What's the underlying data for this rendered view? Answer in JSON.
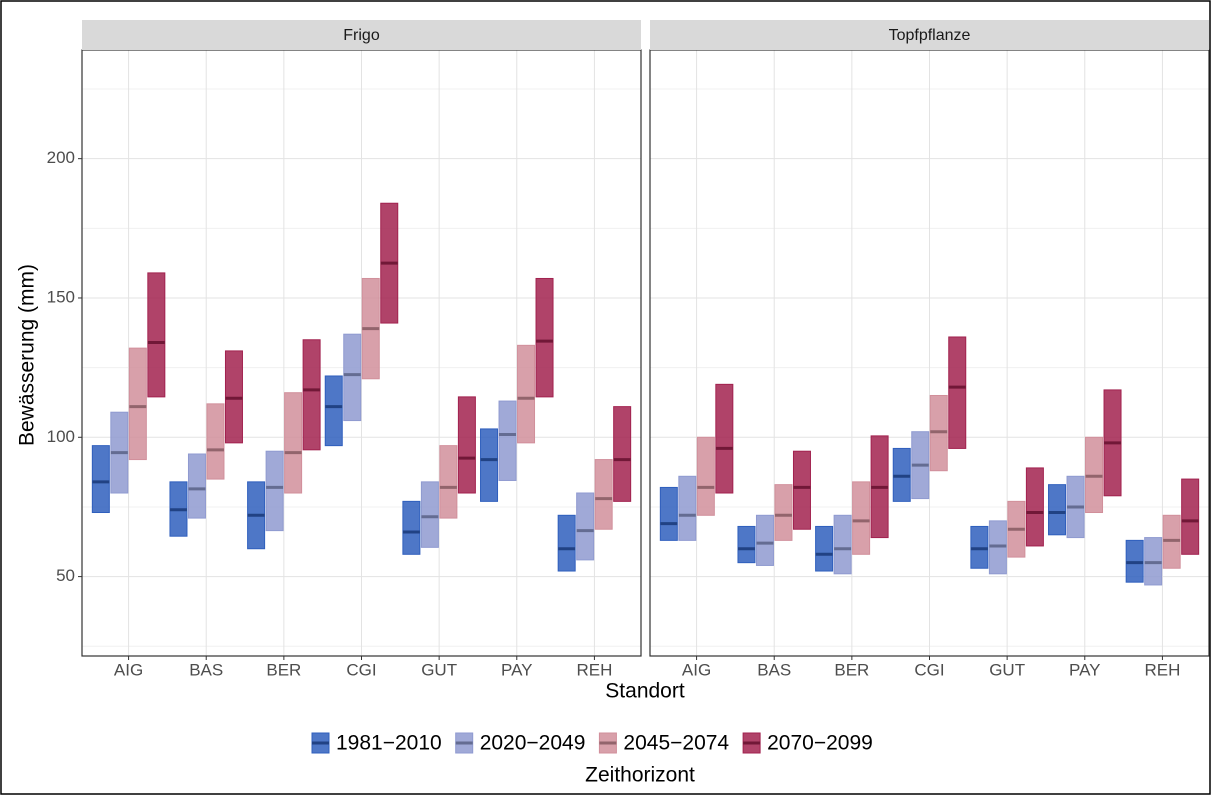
{
  "chart_data": {
    "type": "crossbar",
    "x_label": "Standort",
    "y_label": "Bewässerung (mm)",
    "legend_title": "Zeithorizont",
    "categories": [
      "AIG",
      "BAS",
      "BER",
      "CGI",
      "GUT",
      "PAY",
      "REH"
    ],
    "ylim": [
      21.5,
      239
    ],
    "yticks": [
      50,
      100,
      150,
      200
    ],
    "grid": true,
    "series": [
      {
        "name": "1981−2010",
        "color": "#2f5fbd"
      },
      {
        "name": "2020−2049",
        "color": "#8f9ad0"
      },
      {
        "name": "2045−2074",
        "color": "#d18f9b"
      },
      {
        "name": "2070−2099",
        "color": "#a2224f"
      }
    ],
    "panels": [
      {
        "title": "Frigo",
        "series": [
          {
            "low": [
              73,
              64.5,
              60,
              97,
              58,
              77,
              52
            ],
            "mid": [
              84,
              74,
              72,
              111,
              66,
              92,
              60
            ],
            "high": [
              97,
              84,
              84,
              122,
              77,
              103,
              72
            ]
          },
          {
            "low": [
              80,
              71,
              66.5,
              106,
              60.5,
              84.5,
              56
            ],
            "mid": [
              94.5,
              81.5,
              82,
              122.5,
              71.5,
              101,
              66.5
            ],
            "high": [
              109,
              94,
              95,
              137,
              84,
              113,
              80
            ]
          },
          {
            "low": [
              92,
              85,
              80,
              121,
              71,
              98,
              67
            ],
            "mid": [
              111,
              95.5,
              94.5,
              139,
              82,
              114,
              78
            ],
            "high": [
              132,
              112,
              116,
              157,
              97,
              133,
              92
            ]
          },
          {
            "low": [
              114.5,
              98,
              95.5,
              141,
              80,
              114.5,
              77
            ],
            "mid": [
              134,
              114,
              117,
              162.5,
              92.5,
              134.5,
              92
            ],
            "high": [
              159,
              131,
              135,
              184,
              114.5,
              157,
              111
            ]
          }
        ]
      },
      {
        "title": "Topfpflanze",
        "series": [
          {
            "low": [
              63,
              55,
              52,
              77,
              53,
              65,
              48
            ],
            "mid": [
              69,
              60,
              58,
              86,
              60,
              73,
              55
            ],
            "high": [
              82,
              68,
              68,
              96,
              68,
              83,
              63
            ]
          },
          {
            "low": [
              63,
              54,
              51,
              78,
              51,
              64,
              47
            ],
            "mid": [
              72,
              62,
              60,
              90,
              61,
              75,
              55
            ],
            "high": [
              86,
              72,
              72,
              102,
              70,
              86,
              64
            ]
          },
          {
            "low": [
              72,
              63,
              58,
              88,
              57,
              73,
              53
            ],
            "mid": [
              82,
              72,
              70,
              102,
              67,
              86,
              63
            ],
            "high": [
              100,
              83,
              84,
              115,
              77,
              100,
              72
            ]
          },
          {
            "low": [
              80,
              67,
              64,
              96,
              61,
              79,
              58
            ],
            "mid": [
              96,
              82,
              82,
              118,
              73,
              98,
              70
            ],
            "high": [
              119,
              95,
              100.5,
              136,
              89,
              117,
              85
            ]
          }
        ]
      }
    ]
  }
}
